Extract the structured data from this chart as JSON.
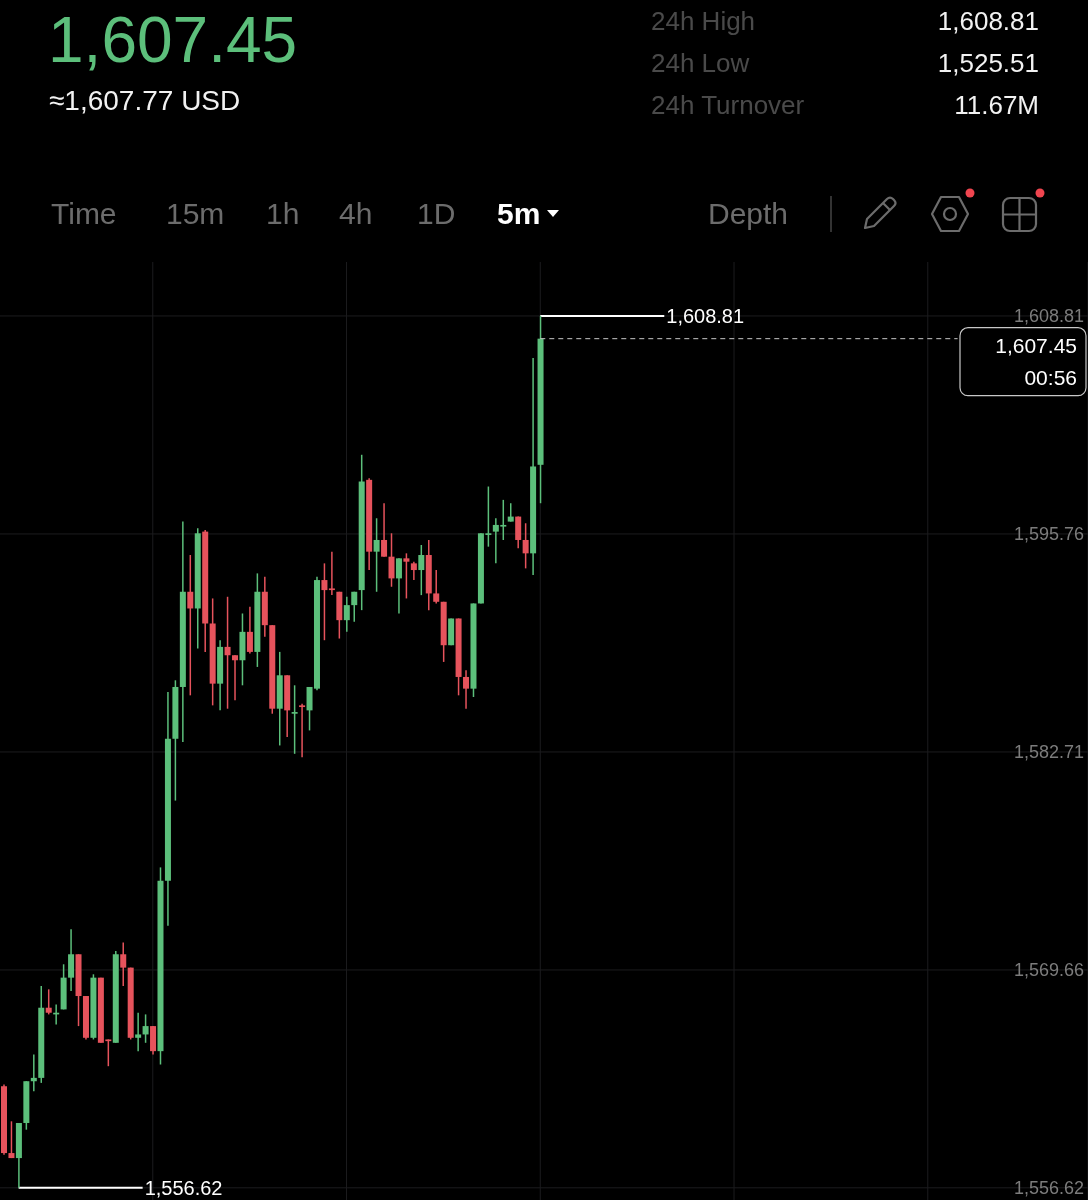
{
  "chart_data": {
    "type": "candlestick",
    "title": "1,607.45",
    "subtitle": "≈1,607.77 USD",
    "categories": [
      null,
      null,
      null,
      null,
      null,
      null,
      null,
      null,
      null,
      null,
      null,
      null,
      null,
      null,
      null,
      null,
      null,
      null,
      null,
      null,
      null,
      null,
      null,
      null,
      null,
      null,
      null,
      null,
      null,
      null,
      null,
      null,
      null,
      null,
      null,
      null,
      null,
      null,
      null,
      null,
      null,
      null,
      null,
      null,
      null,
      null,
      null,
      null,
      null,
      null,
      null,
      null,
      null,
      null,
      null,
      null,
      null,
      null,
      null,
      null,
      null,
      null,
      null,
      null,
      null,
      null,
      null,
      null,
      null,
      null,
      null,
      null,
      null,
      null,
      null,
      null,
      null,
      null,
      null,
      null,
      null,
      null,
      null,
      null,
      null,
      null,
      null,
      null,
      null,
      null,
      null,
      null,
      null,
      null,
      null,
      null,
      null,
      null,
      null,
      null,
      null,
      null,
      null,
      null,
      null,
      null,
      null,
      null,
      null,
      null,
      null,
      null,
      null,
      null,
      null,
      null,
      null,
      null,
      null,
      null,
      null,
      null,
      null,
      null,
      null,
      null,
      null,
      null,
      null,
      null,
      null,
      null,
      null,
      null,
      null,
      null,
      null,
      null,
      null,
      null,
      null,
      null,
      null,
      null,
      null,
      null
    ],
    "ohlc": [
      [
        1562.7,
        1562.8,
        1558.6,
        1558.7
      ],
      [
        1558.7,
        1560.6,
        1558.4,
        1558.4
      ],
      [
        1558.4,
        1560.5,
        1556.62,
        1560.5
      ],
      [
        1560.5,
        1563.0,
        1560.1,
        1563.0
      ],
      [
        1563.0,
        1564.6,
        1562.4,
        1563.2
      ],
      [
        1563.2,
        1568.7,
        1562.9,
        1567.4
      ],
      [
        1567.4,
        1568.5,
        1567.0,
        1567.1
      ],
      [
        1567.0,
        1567.6,
        1566.4,
        1567.1
      ],
      [
        1567.3,
        1570.0,
        1567.3,
        1569.2
      ],
      [
        1569.2,
        1572.1,
        1568.4,
        1570.6
      ],
      [
        1570.6,
        1570.6,
        1566.3,
        1568.1
      ],
      [
        1568.1,
        1568.1,
        1565.5,
        1565.6
      ],
      [
        1565.6,
        1569.4,
        1565.5,
        1569.2
      ],
      [
        1569.2,
        1569.2,
        1565.3,
        1565.3
      ],
      [
        1565.5,
        1565.5,
        1563.9,
        1565.4
      ],
      [
        1565.3,
        1570.8,
        1565.3,
        1570.6
      ],
      [
        1570.6,
        1571.3,
        1568.7,
        1569.8
      ],
      [
        1569.8,
        1569.8,
        1565.5,
        1565.6
      ],
      [
        1565.6,
        1567.1,
        1564.8,
        1565.8
      ],
      [
        1565.8,
        1567.0,
        1565.3,
        1566.3
      ],
      [
        1566.3,
        1566.3,
        1564.6,
        1564.8
      ],
      [
        1564.8,
        1575.8,
        1564.0,
        1575.0
      ],
      [
        1575.0,
        1586.3,
        1572.3,
        1583.5
      ],
      [
        1583.5,
        1587.0,
        1579.8,
        1586.6
      ],
      [
        1586.6,
        1596.5,
        1583.3,
        1592.3
      ],
      [
        1592.3,
        1594.5,
        1586.1,
        1591.3
      ],
      [
        1591.3,
        1596.1,
        1588.9,
        1595.8
      ],
      [
        1595.9,
        1596.0,
        1588.7,
        1590.4
      ],
      [
        1590.4,
        1591.9,
        1585.5,
        1586.8
      ],
      [
        1586.8,
        1589.4,
        1585.2,
        1589.0
      ],
      [
        1589.0,
        1592.0,
        1585.3,
        1588.5
      ],
      [
        1588.5,
        1588.5,
        1585.8,
        1588.2
      ],
      [
        1588.2,
        1591.0,
        1586.7,
        1589.9
      ],
      [
        1589.9,
        1591.4,
        1588.6,
        1588.7
      ],
      [
        1588.7,
        1593.4,
        1587.8,
        1592.3
      ],
      [
        1592.3,
        1593.2,
        1589.6,
        1590.3
      ],
      [
        1590.3,
        1590.3,
        1585.0,
        1585.3
      ],
      [
        1585.3,
        1588.7,
        1583.1,
        1587.3
      ],
      [
        1587.3,
        1587.3,
        1583.6,
        1585.2
      ],
      [
        1585.0,
        1586.7,
        1582.6,
        1585.1
      ],
      [
        1585.5,
        1585.6,
        1582.4,
        1585.4
      ],
      [
        1585.2,
        1586.6,
        1584.0,
        1586.6
      ],
      [
        1586.5,
        1593.2,
        1586.4,
        1593.0
      ],
      [
        1593.0,
        1594.0,
        1589.4,
        1592.4
      ],
      [
        1592.5,
        1594.7,
        1592.1,
        1592.4
      ],
      [
        1592.3,
        1592.3,
        1589.5,
        1590.6
      ],
      [
        1590.6,
        1592.0,
        1589.9,
        1591.5
      ],
      [
        1591.5,
        1592.3,
        1590.5,
        1592.3
      ],
      [
        1592.4,
        1600.5,
        1591.2,
        1598.9
      ],
      [
        1599.0,
        1599.1,
        1593.6,
        1594.7
      ],
      [
        1594.7,
        1596.7,
        1592.3,
        1595.4
      ],
      [
        1595.4,
        1597.6,
        1594.4,
        1594.4
      ],
      [
        1594.4,
        1595.8,
        1592.6,
        1593.1
      ],
      [
        1593.1,
        1594.3,
        1591.0,
        1594.3
      ],
      [
        1594.3,
        1594.6,
        1591.9,
        1594.1
      ],
      [
        1594.0,
        1594.1,
        1593.0,
        1593.6
      ],
      [
        1593.6,
        1595.1,
        1592.1,
        1594.5
      ],
      [
        1594.5,
        1595.4,
        1591.2,
        1592.2
      ],
      [
        1592.2,
        1593.6,
        1591.6,
        1591.7
      ],
      [
        1591.7,
        1591.7,
        1588.1,
        1589.1
      ],
      [
        1589.1,
        1590.7,
        1589.1,
        1590.7
      ],
      [
        1590.7,
        1590.7,
        1586.1,
        1587.2
      ],
      [
        1587.2,
        1587.6,
        1585.3,
        1586.5
      ],
      [
        1586.5,
        1591.6,
        1586.0,
        1591.6
      ],
      [
        1591.6,
        1595.8,
        1591.6,
        1595.8
      ],
      [
        1595.7,
        1598.6,
        1595.0,
        1595.8
      ],
      [
        1595.9,
        1596.7,
        1594.0,
        1596.3
      ],
      [
        1596.2,
        1597.8,
        1595.4,
        1596.3
      ],
      [
        1596.5,
        1597.6,
        1596.5,
        1596.8
      ],
      [
        1596.8,
        1596.8,
        1594.9,
        1595.4
      ],
      [
        1595.4,
        1596.4,
        1593.7,
        1594.6
      ],
      [
        1594.6,
        1606.3,
        1593.3,
        1599.8
      ],
      [
        1599.9,
        1608.81,
        1597.6,
        1607.45
      ],
      null,
      null,
      null,
      null,
      null,
      null,
      null,
      null,
      null,
      null,
      null,
      null,
      null,
      null,
      null,
      null,
      null,
      null,
      null,
      null,
      null,
      null,
      null,
      null,
      null,
      null,
      null,
      null,
      null,
      null,
      null,
      null,
      null,
      null,
      null,
      null,
      null,
      null,
      null,
      null,
      null,
      null,
      null,
      null,
      null,
      null,
      null,
      null,
      null,
      null,
      null,
      null,
      null,
      null,
      null,
      null,
      null,
      null,
      null,
      null,
      null,
      null,
      null,
      null,
      null,
      null,
      null,
      null,
      null,
      null,
      null,
      null,
      null
    ],
    "colors": [
      "#e6535c",
      "#e6535c",
      "#5cbf7b",
      "#5cbf7b",
      "#5cbf7b",
      "#5cbf7b",
      "#e6535c",
      "#5cbf7b",
      "#5cbf7b",
      "#5cbf7b",
      "#e6535c",
      "#e6535c",
      "#5cbf7b",
      "#e6535c",
      "#e6535c",
      "#5cbf7b",
      "#e6535c",
      "#e6535c",
      "#5cbf7b",
      "#5cbf7b",
      "#e6535c",
      "#5cbf7b",
      "#5cbf7b",
      "#5cbf7b",
      "#5cbf7b",
      "#e6535c",
      "#5cbf7b",
      "#e6535c",
      "#e6535c",
      "#5cbf7b",
      "#e6535c",
      "#e6535c",
      "#5cbf7b",
      "#e6535c",
      "#5cbf7b",
      "#e6535c",
      "#e6535c",
      "#5cbf7b",
      "#e6535c",
      "#5cbf7b",
      "#e6535c",
      "#5cbf7b",
      "#5cbf7b",
      "#e6535c",
      "#e6535c",
      "#e6535c",
      "#5cbf7b",
      "#5cbf7b",
      "#5cbf7b",
      "#e6535c",
      "#5cbf7b",
      "#e6535c",
      "#e6535c",
      "#5cbf7b",
      "#e6535c",
      "#e6535c",
      "#5cbf7b",
      "#e6535c",
      "#e6535c",
      "#e6535c",
      "#5cbf7b",
      "#e6535c",
      "#e6535c",
      "#5cbf7b",
      "#5cbf7b",
      "#5cbf7b",
      "#5cbf7b",
      "#5cbf7b",
      "#5cbf7b",
      "#e6535c",
      "#e6535c",
      "#5cbf7b",
      "#5cbf7b",
      null,
      null,
      null,
      null,
      null,
      null,
      null,
      null,
      null,
      null,
      null,
      null,
      null,
      null,
      null,
      null,
      null,
      null,
      null,
      null,
      null,
      null,
      null,
      null,
      null,
      null,
      null,
      null,
      null,
      null,
      null,
      null,
      null,
      null,
      null,
      null,
      null,
      null,
      null,
      null,
      null,
      null,
      null,
      null,
      null,
      null,
      null,
      null,
      null,
      null,
      null,
      null,
      null,
      null,
      null,
      null,
      null,
      null,
      null,
      null,
      null,
      null,
      null,
      null,
      null,
      null,
      null,
      null,
      null,
      null,
      null,
      null,
      null
    ],
    "ylim": [
      1555.89,
      1612.04
    ],
    "yticks": [
      {
        "value": 1556.62,
        "label": "1,556.62"
      },
      {
        "value": 1569.66,
        "label": "1,569.66"
      },
      {
        "value": 1582.71,
        "label": "1,582.71"
      },
      {
        "value": 1595.76,
        "label": "1,595.76"
      },
      {
        "value": 1608.81,
        "label": "1,608.81"
      }
    ],
    "grid": true,
    "ref_lines": [
      {
        "axis": "y",
        "value": 1607.45,
        "label": "1,607.45",
        "line_style": "dashed",
        "color": "#c8c8c8"
      }
    ],
    "annotations": [
      "24h High",
      "1,608.81",
      "24h Low",
      "1,525.51",
      "24h Turnover",
      "11.67M",
      "Time",
      "15m",
      "1h",
      "4h",
      "1D",
      "5m",
      "Depth",
      "00:56",
      "1,608.81",
      "1,556.62"
    ]
  }
}
